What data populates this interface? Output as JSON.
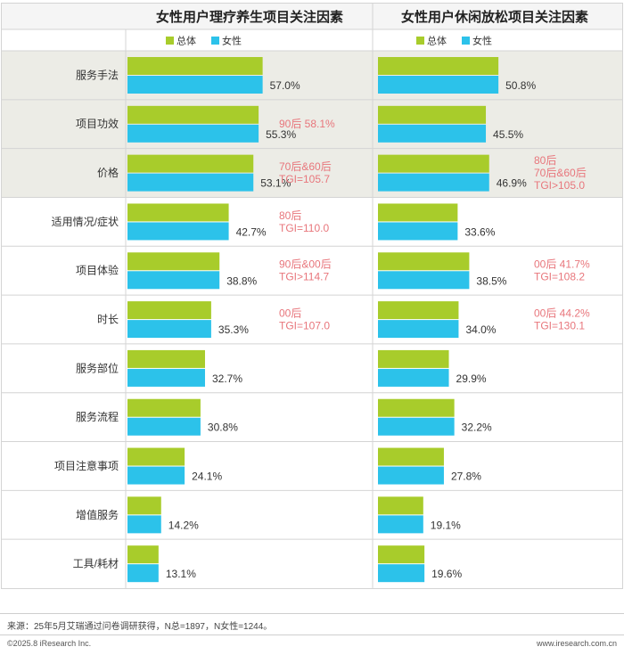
{
  "colors": {
    "overall": "#a8cc2b",
    "female": "#2cc2ea",
    "note": "#e8767c",
    "highlight": "#ececE6",
    "grid": "#d4d4d4",
    "header_bg": "#f5f5f5"
  },
  "chart_data": {
    "type": "bar",
    "categories": [
      "服务手法",
      "项目功效",
      "价格",
      "适用情况/症状",
      "项目体验",
      "时长",
      "服务部位",
      "服务流程",
      "项目注意事项",
      "增值服务",
      "工具/耗材"
    ],
    "legend": {
      "overall": "总体",
      "female": "女性"
    },
    "xlim": [
      0,
      100
    ],
    "highlight_rows": [
      0,
      1,
      2
    ],
    "panels": [
      {
        "title": "女性用户理疗养生项目关注因素",
        "series": [
          {
            "name": "总体",
            "values": [
              57.0,
              55.3,
              53.1,
              42.7,
              38.8,
              35.3,
              32.7,
              30.8,
              24.1,
              14.2,
              13.1
            ]
          },
          {
            "name": "女性",
            "values": [
              57.0,
              55.3,
              53.1,
              42.7,
              38.8,
              35.3,
              32.7,
              30.8,
              24.1,
              14.2,
              13.1
            ]
          }
        ],
        "value_labels": [
          "57.0%",
          "55.3%",
          "53.1%",
          "42.7%",
          "38.8%",
          "35.3%",
          "32.7%",
          "30.8%",
          "24.1%",
          "14.2%",
          "13.1%"
        ],
        "annotations": [
          {
            "row": 1,
            "lines": [
              "90后 58.1%"
            ]
          },
          {
            "row": 2,
            "lines": [
              "70后&60后",
              "TGI=105.7"
            ]
          },
          {
            "row": 3,
            "lines": [
              "80后",
              "TGI=110.0"
            ]
          },
          {
            "row": 4,
            "lines": [
              "90后&00后",
              "TGI>114.7"
            ]
          },
          {
            "row": 5,
            "lines": [
              "00后",
              "TGI=107.0"
            ]
          }
        ]
      },
      {
        "title": "女性用户休闲放松项目关注因素",
        "series": [
          {
            "name": "总体",
            "values": [
              50.8,
              45.5,
              46.9,
              33.6,
              38.5,
              34.0,
              29.9,
              32.2,
              27.8,
              19.1,
              19.6
            ]
          },
          {
            "name": "女性",
            "values": [
              50.8,
              45.5,
              46.9,
              33.6,
              38.5,
              34.0,
              29.9,
              32.2,
              27.8,
              19.1,
              19.6
            ]
          }
        ],
        "value_labels": [
          "50.8%",
          "45.5%",
          "46.9%",
          "33.6%",
          "38.5%",
          "34.0%",
          "29.9%",
          "32.2%",
          "27.8%",
          "19.1%",
          "19.6%"
        ],
        "annotations": [
          {
            "row": 2,
            "lines": [
              "80后",
              "70后&60后",
              "TGI>105.0"
            ]
          },
          {
            "row": 4,
            "lines": [
              "00后 41.7%",
              "TGI=108.2"
            ]
          },
          {
            "row": 5,
            "lines": [
              "00后 44.2%",
              "TGI=130.1"
            ]
          }
        ]
      }
    ]
  },
  "footer": {
    "source": "来源：25年5月艾瑞通过问卷调研获得，N总=1897，N女性=1244。",
    "copyright": "©2025.8 iResearch Inc.",
    "website": "www.iresearch.com.cn"
  }
}
